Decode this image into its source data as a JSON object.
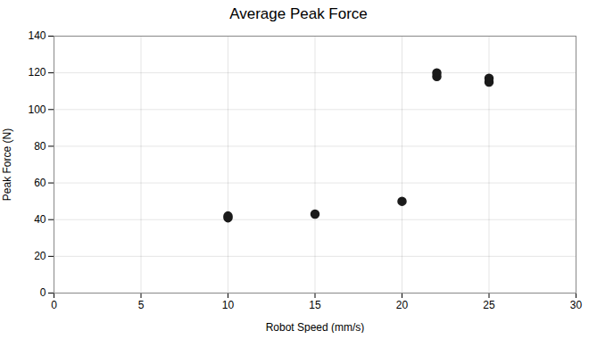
{
  "chart_data": {
    "type": "scatter",
    "title": "Average Peak Force",
    "xlabel": "Robot Speed (mm/s)",
    "ylabel": "Peak Force (N)",
    "x": [
      10,
      10,
      15,
      20,
      22,
      22,
      25,
      25
    ],
    "y": [
      41,
      42,
      43,
      50,
      118,
      120,
      115,
      117
    ],
    "xlim": [
      0,
      30
    ],
    "ylim": [
      0,
      140
    ],
    "xticks": [
      0,
      5,
      10,
      15,
      20,
      25,
      30
    ],
    "yticks": [
      0,
      20,
      40,
      60,
      80,
      100,
      120,
      140
    ],
    "color": "#1a1a1a",
    "marker": "circle",
    "grid": true
  }
}
